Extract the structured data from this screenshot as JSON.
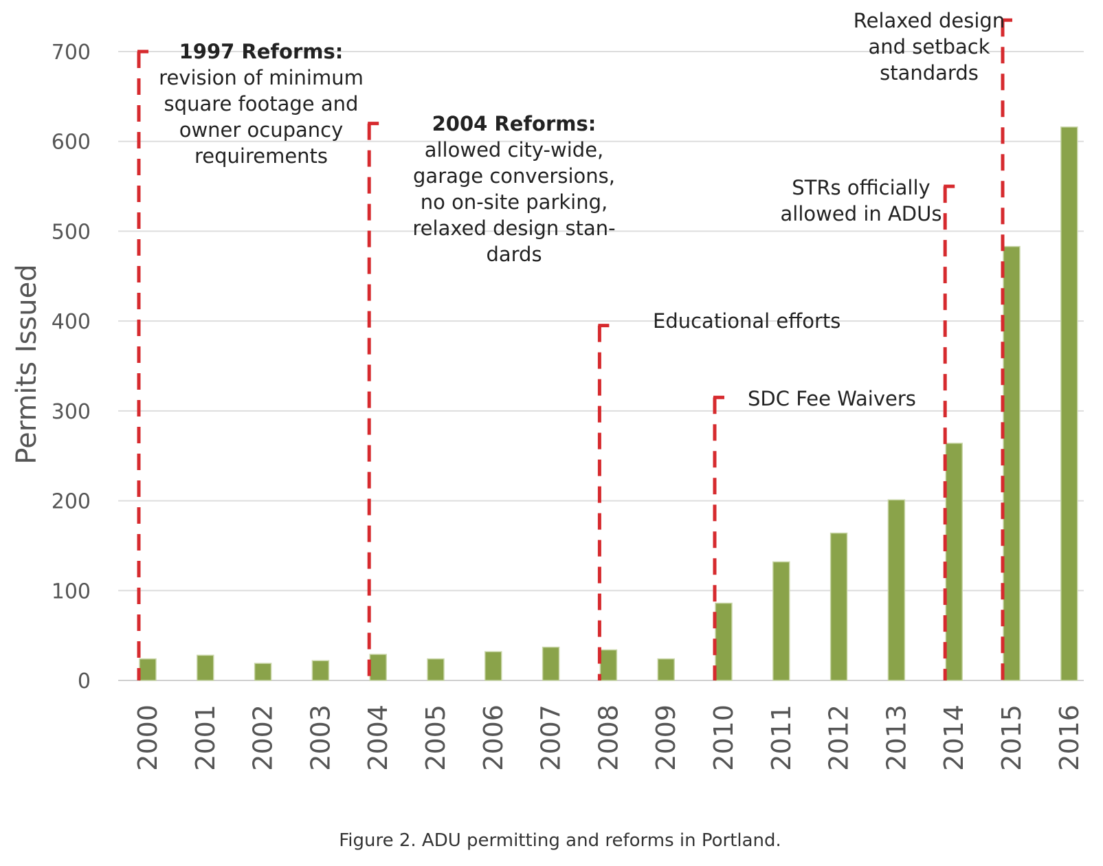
{
  "chart_data": {
    "type": "bar",
    "categories": [
      "2000",
      "2001",
      "2002",
      "2003",
      "2004",
      "2005",
      "2006",
      "2007",
      "2008",
      "2009",
      "2010",
      "2011",
      "2012",
      "2013",
      "2014",
      "2015",
      "2016"
    ],
    "values": [
      24,
      28,
      19,
      22,
      29,
      24,
      32,
      37,
      34,
      24,
      86,
      132,
      164,
      201,
      264,
      483,
      616
    ],
    "xlabel": "",
    "ylabel": "Permits Issued",
    "ylim": [
      0,
      700
    ],
    "yticks": [
      0,
      100,
      200,
      300,
      400,
      500,
      600,
      700
    ],
    "grid": true,
    "bar_color": "#8aa34a",
    "annotation_color": "#d62a2e",
    "annotations": [
      {
        "year": "2000",
        "level": 700,
        "heading": "1997 Reforms:",
        "lines": [
          "revision of minimum",
          "square footage and",
          "owner ocupancy",
          "requirements"
        ]
      },
      {
        "year": "2004",
        "level": 620,
        "heading": "2004 Reforms:",
        "lines": [
          "allowed city-wide,",
          "garage conversions,",
          "no on-site parking,",
          "relaxed design stan-",
          "dards"
        ]
      },
      {
        "year": "2008",
        "level": 395,
        "heading": "",
        "lines": [
          "Educational efforts"
        ]
      },
      {
        "year": "2010",
        "level": 315,
        "heading": "",
        "lines": [
          "SDC Fee Waivers"
        ]
      },
      {
        "year": "2014",
        "level": 550,
        "heading": "",
        "lines": [
          "STRs officially",
          "allowed in ADUs"
        ]
      },
      {
        "year": "2015",
        "level": 735,
        "heading": "",
        "lines": [
          "Relaxed design",
          "and setback",
          "standards"
        ]
      }
    ]
  },
  "caption": "Figure 2. ADU permitting and reforms in Portland."
}
